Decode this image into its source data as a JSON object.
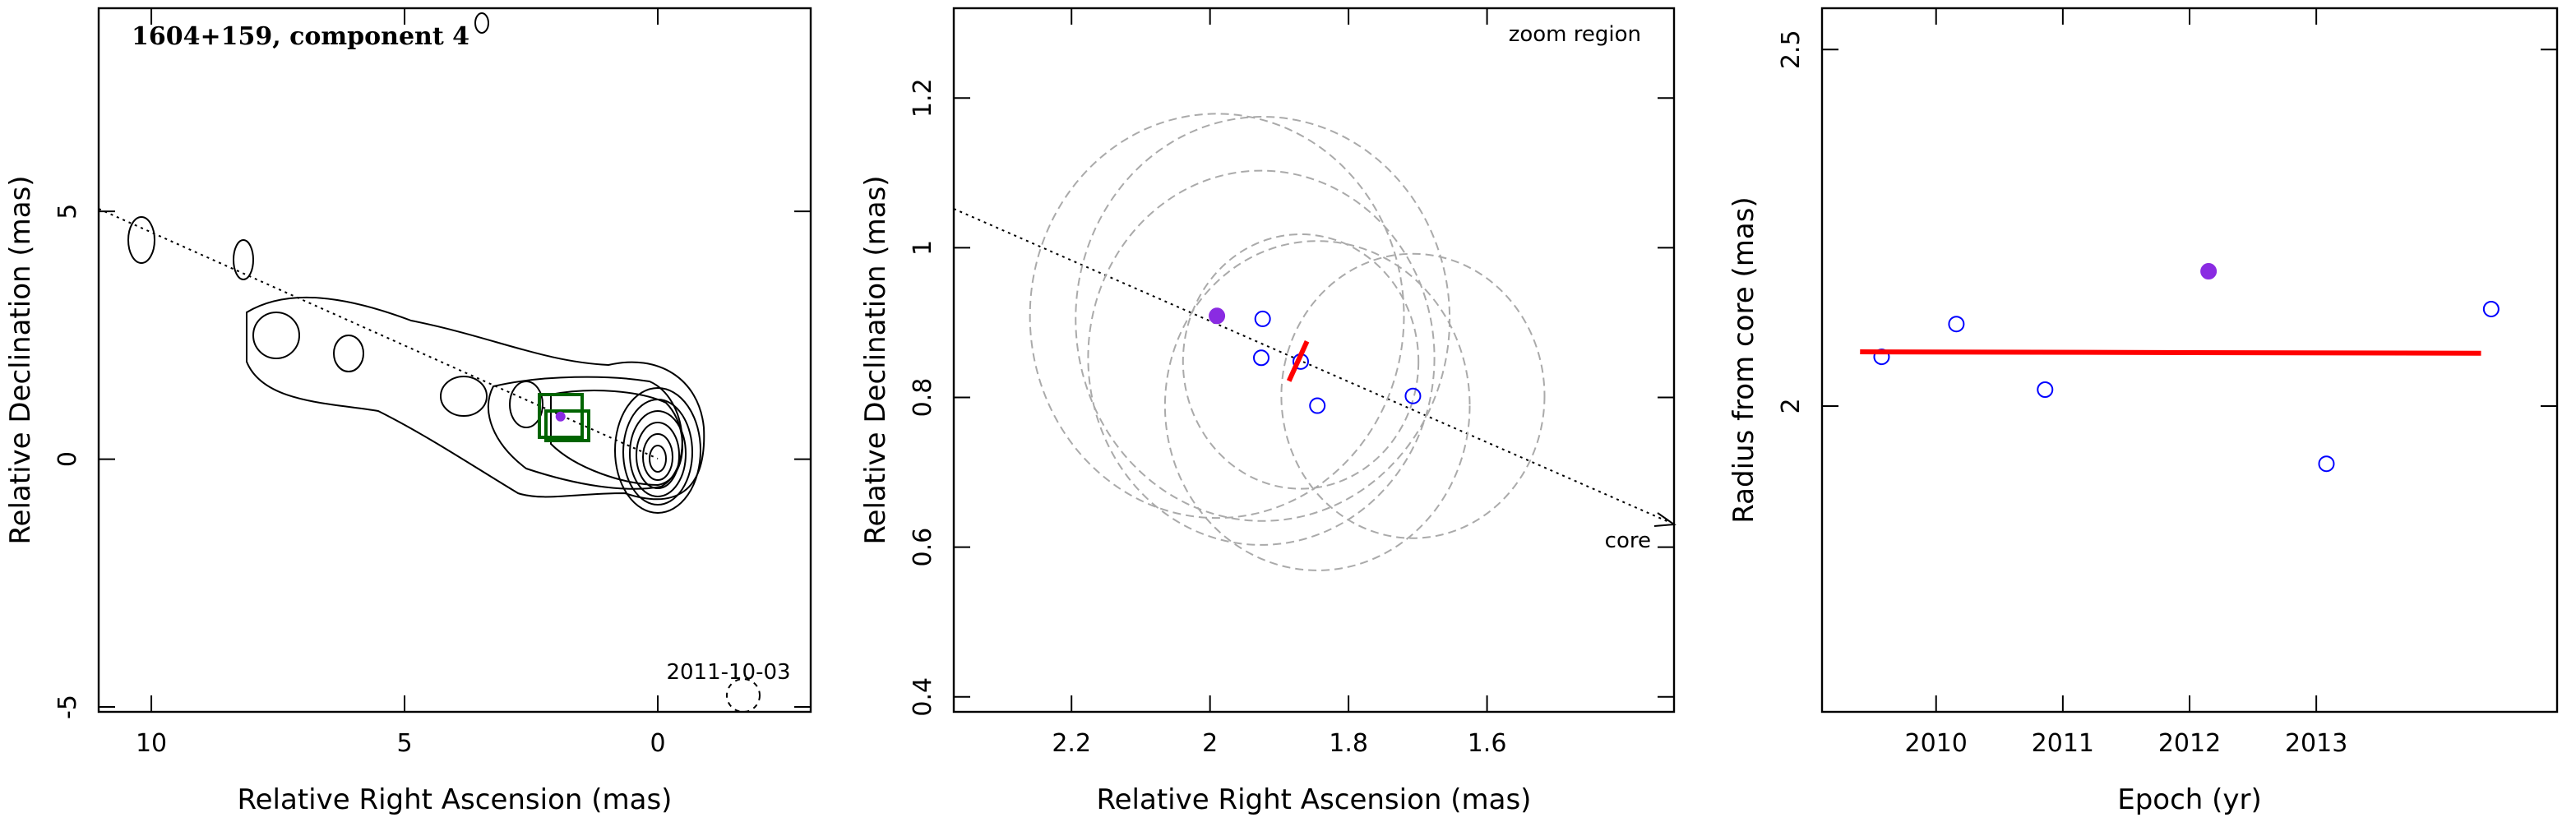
{
  "chart_data": [
    {
      "type": "map",
      "title": "1604+159, component 4",
      "annotation": "2011-10-03",
      "xlabel": "Relative Right Ascension (mas)",
      "ylabel": "Relative Declination (mas)",
      "xlim": [
        11.04,
        -3.02
      ],
      "ylim": [
        -5.1,
        9.1
      ],
      "xticks": [
        10,
        5,
        0
      ],
      "yticks": [
        -5,
        0,
        5
      ],
      "x": [
        1.92
      ],
      "values": [
        0.86
      ],
      "color": "#8a2be2"
    },
    {
      "type": "scatter",
      "annotations": [
        "zoom region",
        "core"
      ],
      "xlabel": "Relative Right Ascension (mas)",
      "ylabel": "Relative Declination (mas)",
      "xlim": [
        2.37,
        1.33
      ],
      "ylim": [
        0.38,
        1.32
      ],
      "xticks": [
        2.2,
        2,
        1.8,
        1.6
      ],
      "yticks": [
        0.4,
        0.6,
        0.8,
        1,
        1.2
      ],
      "series": [
        {
          "color": "#8a2be2",
          "filled": true,
          "x": [
            1.99
          ],
          "values": [
            0.909
          ],
          "radius": [
            0.27
          ]
        },
        {
          "color": "#0000ff",
          "filled": false,
          "x": [
            1.924,
            1.926,
            1.869,
            1.845,
            1.707
          ],
          "values": [
            0.905,
            0.853,
            0.848,
            0.789,
            0.802
          ],
          "radius": [
            0.27,
            0.25,
            0.17,
            0.22,
            0.19
          ]
        }
      ],
      "fit": {
        "color": "#ff0000",
        "x": [
          1.886,
          1.86
        ],
        "values": [
          0.822,
          0.875
        ]
      }
    },
    {
      "type": "scatter",
      "xlabel": "Epoch (yr)",
      "ylabel": "Radius from core (mas)",
      "xlim": [
        2009.1,
        2014.9
      ],
      "ylim": [
        1.571,
        2.558
      ],
      "xticks": [
        2010,
        2011,
        2012,
        2013
      ],
      "yticks": [
        2,
        2.5
      ],
      "series": [
        {
          "color": "#0000ff",
          "filled": false,
          "x": [
            2009.57,
            2010.16,
            2010.86,
            2013.08,
            2014.38
          ],
          "values": [
            2.069,
            2.115,
            2.023,
            1.919,
            2.136
          ]
        },
        {
          "color": "#8a2be2",
          "filled": true,
          "x": [
            2012.15
          ],
          "values": [
            2.189
          ]
        }
      ],
      "fit": {
        "color": "#ff0000",
        "x": [
          2009.4,
          2014.3
        ],
        "values": [
          2.076,
          2.074
        ]
      }
    }
  ]
}
